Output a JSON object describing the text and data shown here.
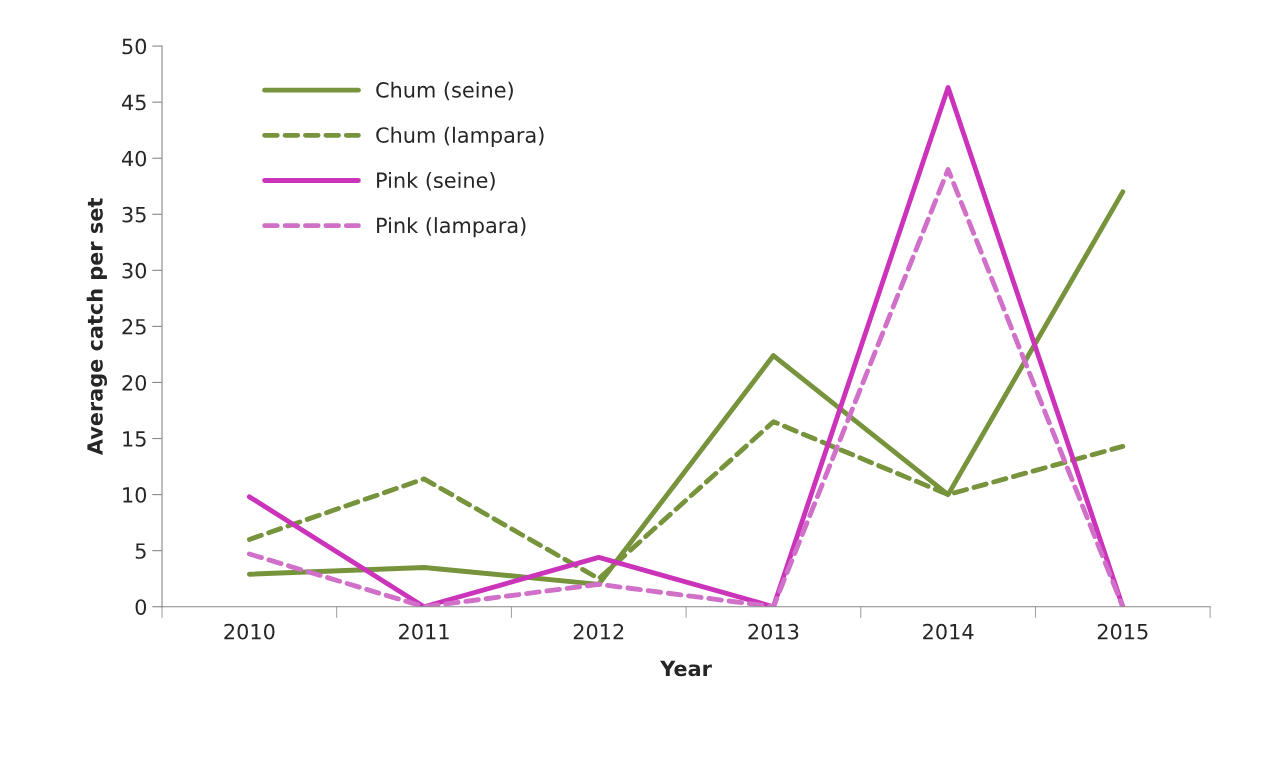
{
  "chart_data": {
    "type": "line",
    "xlabel": "Year",
    "ylabel": "Average catch per set",
    "categories": [
      "2010",
      "2011",
      "2012",
      "2013",
      "2014",
      "2015"
    ],
    "ylim": [
      0,
      50
    ],
    "yticks": [
      0,
      5,
      10,
      15,
      20,
      25,
      30,
      35,
      40,
      45,
      50
    ],
    "grid": false,
    "legend": "top left",
    "series": [
      {
        "name": "Chum (seine)",
        "color": "#77933c",
        "line_style": "solid",
        "values": [
          2.9,
          3.5,
          2,
          22.4,
          10,
          37
        ]
      },
      {
        "name": "Chum (lampara)",
        "color": "#77933c",
        "line_style": "dashed",
        "values": [
          6,
          11.4,
          2.5,
          16.5,
          10,
          14.3
        ]
      },
      {
        "name": "Pink (seine)",
        "color": "#cc33bb",
        "line_style": "solid",
        "values": [
          9.8,
          0,
          4.4,
          0,
          46.3,
          0
        ]
      },
      {
        "name": "Pink (lampara)",
        "color": "#d070c8",
        "line_style": "dashed",
        "values": [
          4.7,
          0,
          2,
          0,
          39,
          0
        ]
      }
    ]
  }
}
